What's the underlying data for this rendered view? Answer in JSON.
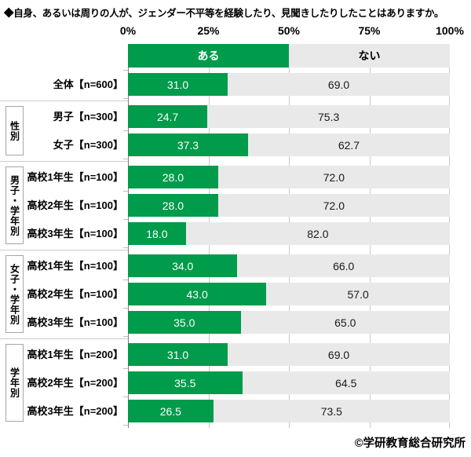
{
  "title": "◆自身、あるいは周りの人が、ジェンダー不平等を経験したり、見聞きしたりしたことはありますか。",
  "credit": "©学研教育総合研究所",
  "colors": {
    "aru_green": "#009b4b",
    "nai_gray": "#e9e9e9"
  },
  "chart_data": {
    "type": "bar",
    "orientation": "horizontal",
    "stacked": true,
    "title": "◆自身、あるいは周りの人が、ジェンダー不平等を経験したり、見聞きしたりしたことはありますか。",
    "xlim": [
      0,
      100
    ],
    "x_ticks": [
      "0%",
      "25%",
      "50%",
      "75%",
      "100%"
    ],
    "legend": [
      {
        "label": "ある",
        "color": "#009b4b"
      },
      {
        "label": "ない",
        "color": "#e9e9e9"
      }
    ],
    "groups": [
      {
        "name": "",
        "rows": [
          {
            "label": "全体【n=600】",
            "aru": 31.0,
            "nai": 69.0
          }
        ]
      },
      {
        "name": "性別",
        "rows": [
          {
            "label": "男子【n=300】",
            "aru": 24.7,
            "nai": 75.3
          },
          {
            "label": "女子【n=300】",
            "aru": 37.3,
            "nai": 62.7
          }
        ]
      },
      {
        "name": "男子・学年別",
        "rows": [
          {
            "label": "高校1年生【n=100】",
            "aru": 28.0,
            "nai": 72.0
          },
          {
            "label": "高校2年生【n=100】",
            "aru": 28.0,
            "nai": 72.0
          },
          {
            "label": "高校3年生【n=100】",
            "aru": 18.0,
            "nai": 82.0
          }
        ]
      },
      {
        "name": "女子・学年別",
        "rows": [
          {
            "label": "高校1年生【n=100】",
            "aru": 34.0,
            "nai": 66.0
          },
          {
            "label": "高校2年生【n=100】",
            "aru": 43.0,
            "nai": 57.0
          },
          {
            "label": "高校3年生【n=100】",
            "aru": 35.0,
            "nai": 65.0
          }
        ]
      },
      {
        "name": "学年別",
        "rows": [
          {
            "label": "高校1年生【n=200】",
            "aru": 31.0,
            "nai": 69.0
          },
          {
            "label": "高校2年生【n=200】",
            "aru": 35.5,
            "nai": 64.5
          },
          {
            "label": "高校3年生【n=200】",
            "aru": 26.5,
            "nai": 73.5
          }
        ]
      }
    ]
  }
}
